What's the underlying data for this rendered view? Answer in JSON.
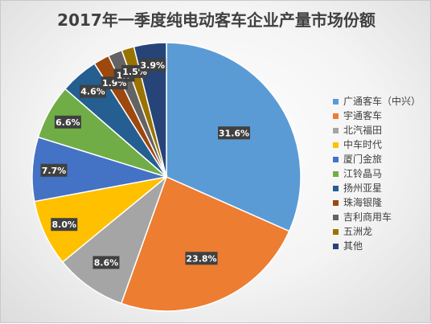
{
  "chart_data": {
    "type": "pie",
    "title": "2017年一季度纯电动客车企业产量市场份额",
    "categories": [
      "广通客车（中兴）",
      "宇通客车",
      "北汽福田",
      "中车时代",
      "厦门金旅",
      "江铃晶马",
      "扬州亚星",
      "珠海银隆",
      "吉利商用车",
      "五洲龙",
      "其他"
    ],
    "values": [
      31.6,
      23.8,
      8.6,
      8.0,
      7.7,
      6.6,
      4.6,
      1.9,
      1.7,
      1.5,
      3.9
    ],
    "data_labels": [
      "31.6%",
      "23.8%",
      "8.6%",
      "8.0%",
      "7.7%",
      "6.6%",
      "4.6%",
      "1.9%",
      "1.7",
      "1.5%",
      "3.9%"
    ],
    "colors": [
      "#5B9BD5",
      "#ED7D31",
      "#A5A5A5",
      "#FFC000",
      "#4472C4",
      "#70AD47",
      "#255E91",
      "#9E480E",
      "#636363",
      "#997300",
      "#264478"
    ],
    "legend_position": "right"
  }
}
